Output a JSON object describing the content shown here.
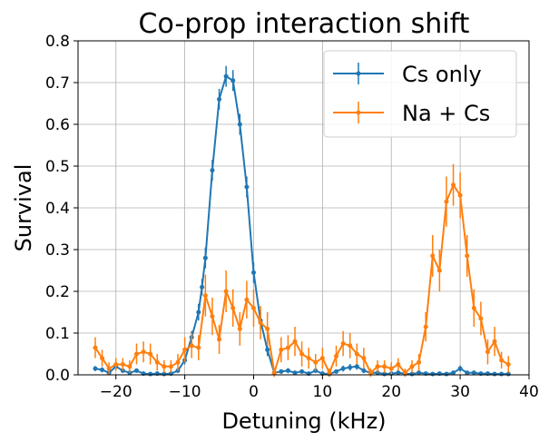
{
  "chart_data": {
    "type": "line",
    "title": "Co-prop interaction shift",
    "xlabel": "Detuning (kHz)",
    "ylabel": "Survival",
    "xlim": [
      -25.5,
      40
    ],
    "ylim": [
      0,
      0.8
    ],
    "xticks": [
      -20,
      -10,
      0,
      10,
      20,
      30,
      40
    ],
    "xtick_labels": [
      "−20",
      "−10",
      "0",
      "10",
      "20",
      "30",
      "40"
    ],
    "yticks": [
      0.0,
      0.1,
      0.2,
      0.3,
      0.4,
      0.5,
      0.6,
      0.7,
      0.8
    ],
    "ytick_labels": [
      "0.0",
      "0.1",
      "0.2",
      "0.3",
      "0.4",
      "0.5",
      "0.6",
      "0.7",
      "0.8"
    ],
    "grid": true,
    "legend_position": "top-right",
    "series": [
      {
        "name": "Cs only",
        "color": "#1f77b4",
        "x": [
          -23,
          -22,
          -21,
          -20,
          -19,
          -18,
          -17,
          -16,
          -15,
          -14,
          -13,
          -12,
          -11,
          -10,
          -9,
          -8,
          -7.5,
          -7,
          -6,
          -5,
          -4,
          -3,
          -2,
          -1,
          0,
          1,
          2,
          3,
          4,
          5,
          6,
          7,
          8,
          9,
          10,
          11,
          12,
          13,
          14,
          15,
          16,
          17,
          18,
          19,
          20,
          21,
          22,
          23,
          24,
          25,
          26,
          27,
          28,
          29,
          30,
          31,
          32,
          33,
          34,
          35,
          36,
          37
        ],
        "y": [
          0.015,
          0.012,
          0.005,
          0.02,
          0.01,
          0.005,
          0.01,
          0.003,
          0.002,
          0.003,
          0.002,
          0.003,
          0.01,
          0.035,
          0.09,
          0.15,
          0.21,
          0.28,
          0.49,
          0.66,
          0.715,
          0.705,
          0.6,
          0.45,
          0.245,
          0.13,
          0.06,
          0.005,
          0.008,
          0.01,
          0.005,
          0.008,
          0.003,
          0.01,
          0.003,
          0.002,
          0.008,
          0.015,
          0.018,
          0.02,
          0.01,
          0.005,
          0.005,
          0.002,
          0.003,
          0.005,
          0.003,
          0.002,
          0.005,
          0.003,
          0.002,
          0.003,
          0.002,
          0.005,
          0.015,
          0.005,
          0.005,
          0.003,
          0.003,
          0.002,
          0.002,
          0.002
        ],
        "err": [
          0.006,
          0.006,
          0.005,
          0.007,
          0.005,
          0.004,
          0.005,
          0.003,
          0.003,
          0.003,
          0.003,
          0.003,
          0.005,
          0.01,
          0.015,
          0.02,
          0.02,
          0.025,
          0.025,
          0.025,
          0.025,
          0.025,
          0.025,
          0.025,
          0.025,
          0.02,
          0.015,
          0.005,
          0.005,
          0.006,
          0.005,
          0.005,
          0.004,
          0.005,
          0.004,
          0.003,
          0.005,
          0.007,
          0.008,
          0.008,
          0.006,
          0.005,
          0.005,
          0.003,
          0.004,
          0.005,
          0.004,
          0.003,
          0.005,
          0.004,
          0.003,
          0.004,
          0.003,
          0.005,
          0.007,
          0.005,
          0.005,
          0.004,
          0.004,
          0.003,
          0.003,
          0.003
        ]
      },
      {
        "name": "Na + Cs",
        "color": "#ff7f0e",
        "x": [
          -23,
          -22,
          -21,
          -20,
          -19,
          -18,
          -17,
          -16,
          -15,
          -14,
          -13,
          -12,
          -11,
          -10,
          -9,
          -8,
          -7,
          -6,
          -5,
          -4,
          -3,
          -2,
          -1,
          0,
          1,
          2,
          3,
          4,
          5,
          6,
          7,
          8,
          9,
          10,
          11,
          12,
          13,
          14,
          15,
          16,
          17,
          18,
          19,
          20,
          21,
          22,
          23,
          24,
          25,
          26,
          27,
          28,
          29,
          30,
          31,
          32,
          33,
          34,
          35,
          36,
          37
        ],
        "y": [
          0.065,
          0.04,
          0.015,
          0.025,
          0.025,
          0.02,
          0.05,
          0.055,
          0.05,
          0.03,
          0.02,
          0.02,
          0.03,
          0.06,
          0.07,
          0.065,
          0.19,
          0.14,
          0.085,
          0.2,
          0.16,
          0.11,
          0.18,
          0.16,
          0.125,
          0.11,
          0.005,
          0.06,
          0.065,
          0.08,
          0.05,
          0.04,
          0.03,
          0.04,
          0.005,
          0.045,
          0.075,
          0.07,
          0.05,
          0.04,
          0.005,
          0.02,
          0.02,
          0.015,
          0.025,
          0.005,
          0.02,
          0.03,
          0.115,
          0.285,
          0.25,
          0.415,
          0.455,
          0.43,
          0.285,
          0.16,
          0.135,
          0.055,
          0.08,
          0.035,
          0.025
        ],
        "err": [
          0.025,
          0.02,
          0.015,
          0.015,
          0.015,
          0.015,
          0.025,
          0.025,
          0.025,
          0.02,
          0.015,
          0.015,
          0.02,
          0.03,
          0.03,
          0.03,
          0.05,
          0.045,
          0.035,
          0.05,
          0.045,
          0.04,
          0.045,
          0.045,
          0.04,
          0.04,
          0.01,
          0.03,
          0.03,
          0.035,
          0.03,
          0.025,
          0.02,
          0.025,
          0.01,
          0.025,
          0.03,
          0.03,
          0.025,
          0.025,
          0.01,
          0.015,
          0.015,
          0.015,
          0.015,
          0.01,
          0.015,
          0.02,
          0.035,
          0.05,
          0.05,
          0.06,
          0.05,
          0.055,
          0.05,
          0.045,
          0.04,
          0.03,
          0.035,
          0.02,
          0.02
        ]
      }
    ]
  }
}
